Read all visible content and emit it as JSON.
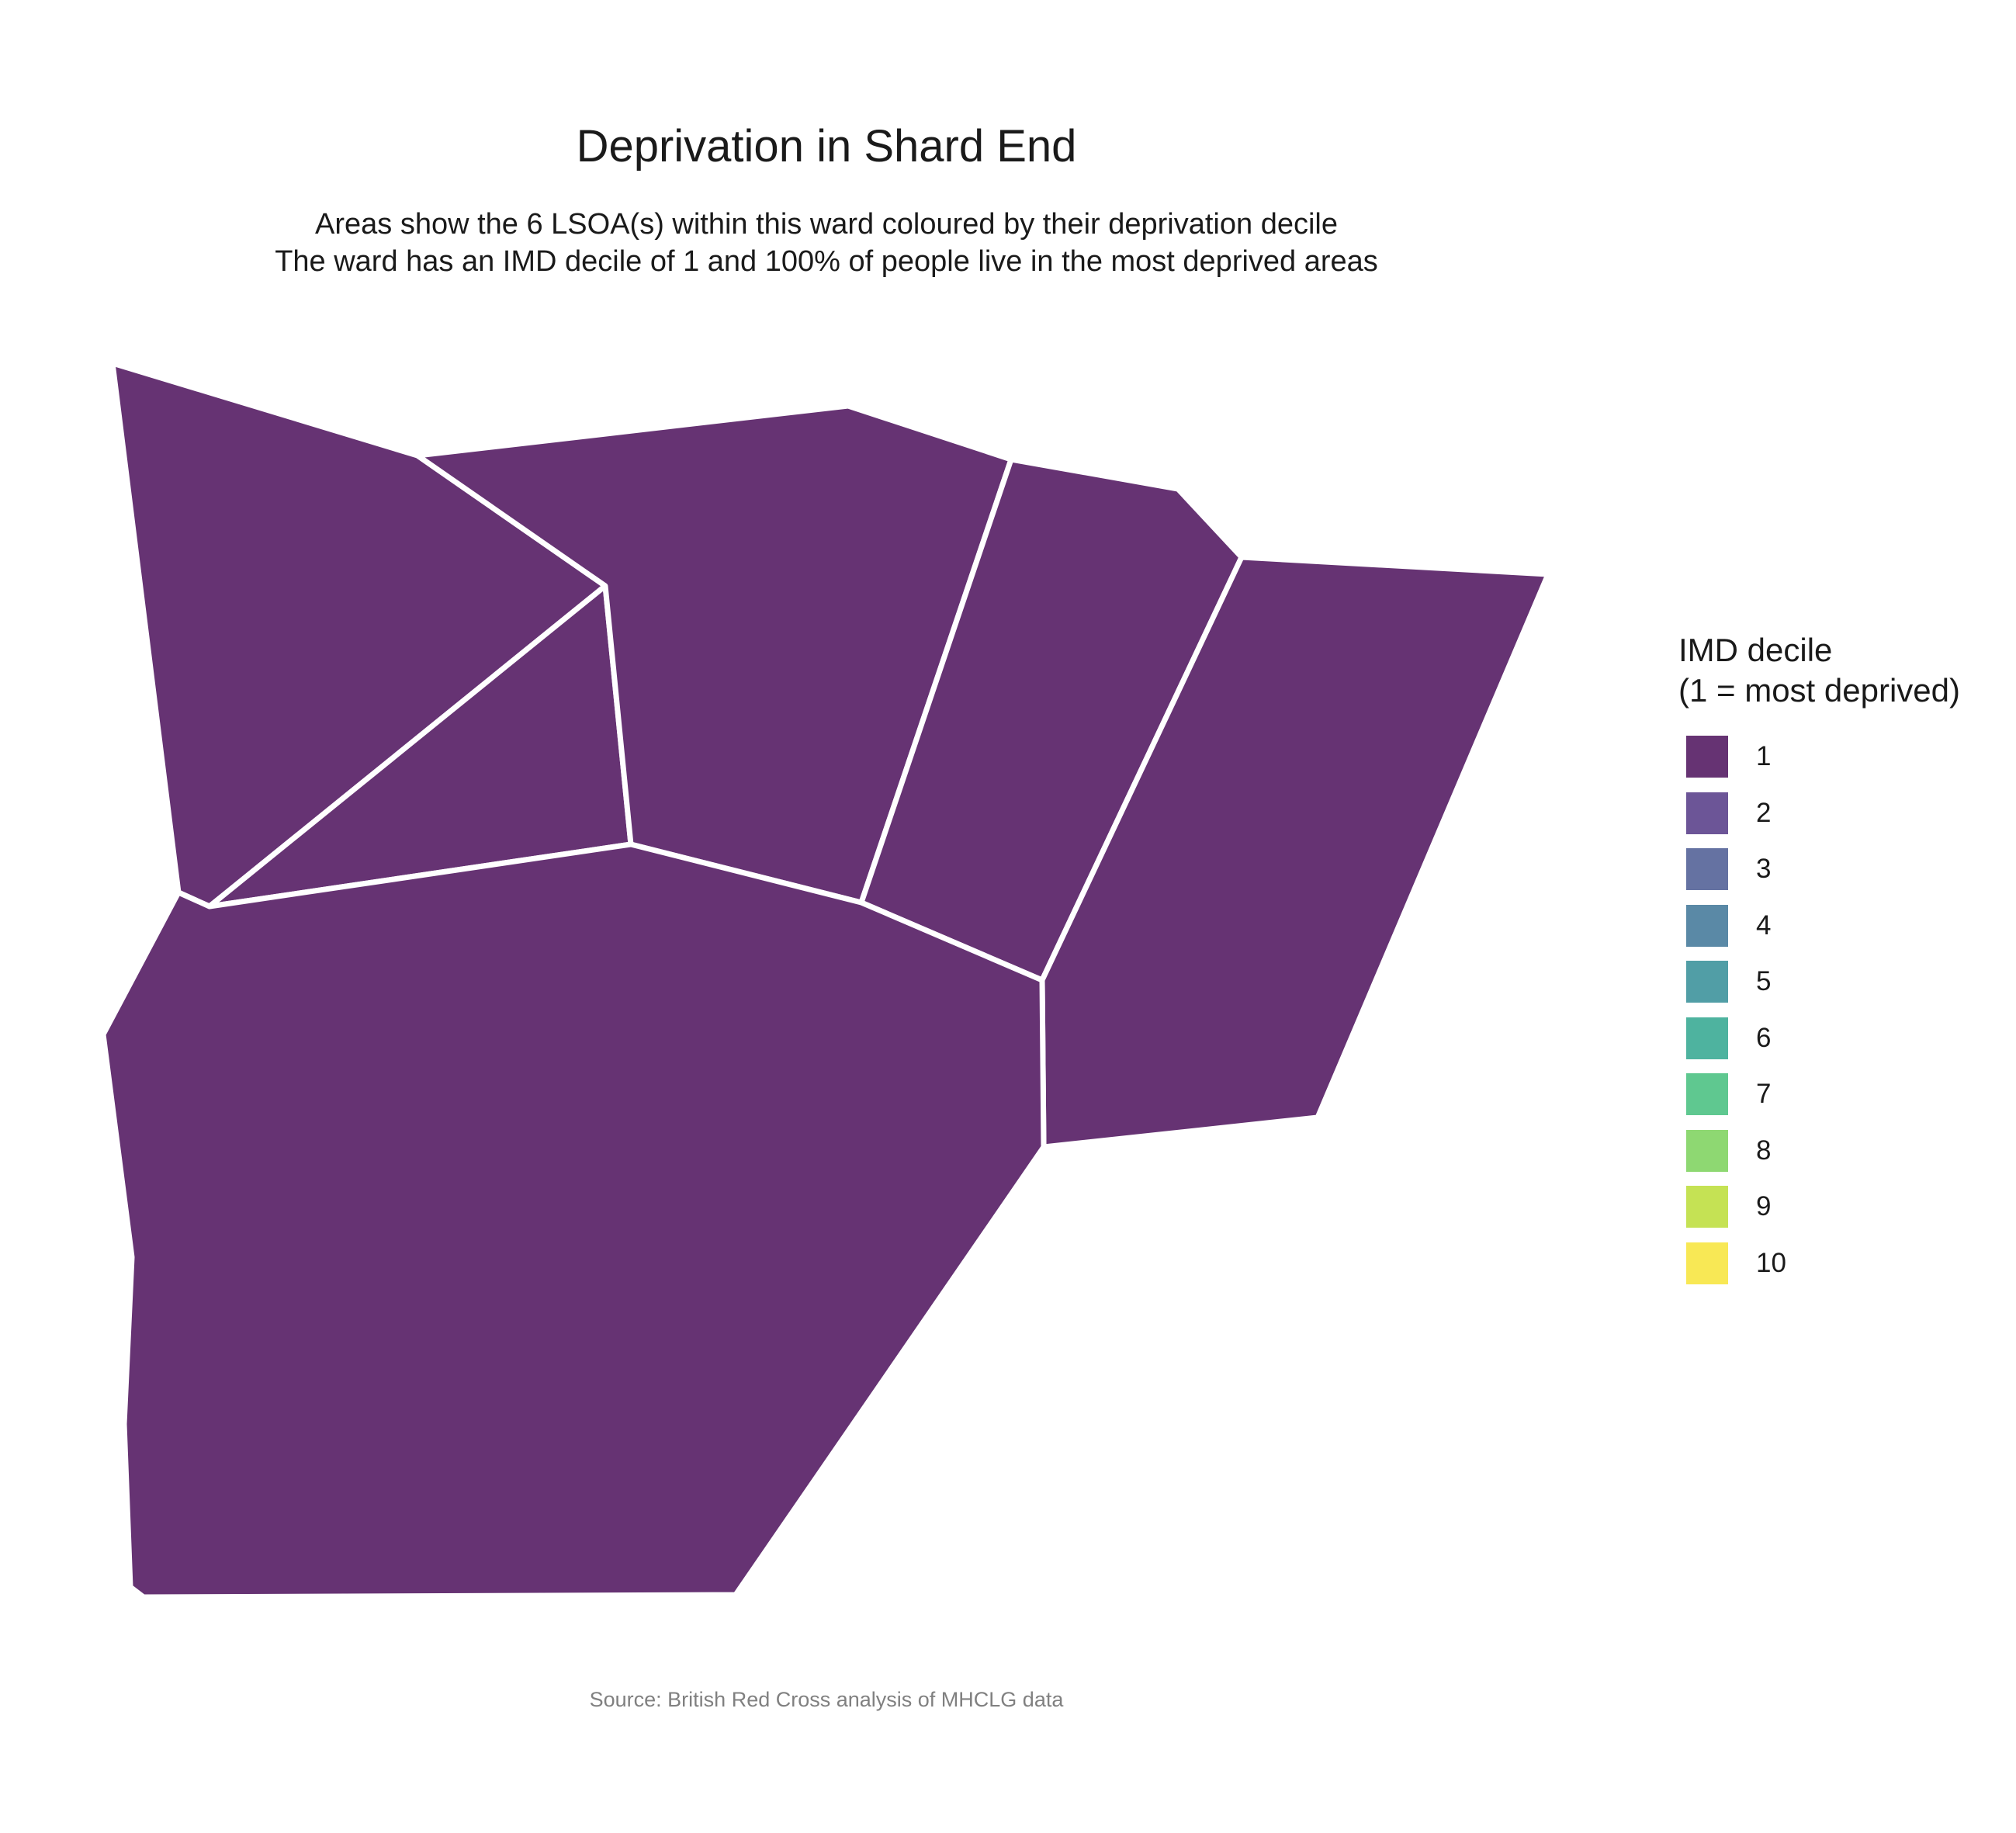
{
  "title": "Deprivation in Shard End",
  "subtitle": {
    "line1": "Areas show the 6 LSOA(s) within this ward coloured by their deprivation decile",
    "line2": "The ward has an IMD decile of 1 and 100% of people live in the most deprived areas"
  },
  "caption": "Source: British Red Cross analysis of MHCLG data",
  "map": {
    "ward": "Shard End",
    "lsoa_count": 6,
    "border_color": "#ffffff",
    "areas": [
      {
        "name": "lsoa-north-west",
        "decile": 1
      },
      {
        "name": "lsoa-inner-triangle",
        "decile": 1
      },
      {
        "name": "lsoa-north-central",
        "decile": 1
      },
      {
        "name": "lsoa-north-east-narrow",
        "decile": 1
      },
      {
        "name": "lsoa-east",
        "decile": 1
      },
      {
        "name": "lsoa-south",
        "decile": 1
      }
    ]
  },
  "legend": {
    "title_line1": "IMD decile",
    "title_line2": "(1 = most deprived)",
    "items": [
      {
        "label": "1",
        "color": "#663373"
      },
      {
        "label": "2",
        "color": "#6c5597"
      },
      {
        "label": "3",
        "color": "#6572a2"
      },
      {
        "label": "4",
        "color": "#5a89a6"
      },
      {
        "label": "5",
        "color": "#519ea6"
      },
      {
        "label": "6",
        "color": "#4eb39f"
      },
      {
        "label": "7",
        "color": "#5fc890"
      },
      {
        "label": "8",
        "color": "#8ed872"
      },
      {
        "label": "9",
        "color": "#c5e254"
      },
      {
        "label": "10",
        "color": "#f8e855"
      }
    ]
  }
}
